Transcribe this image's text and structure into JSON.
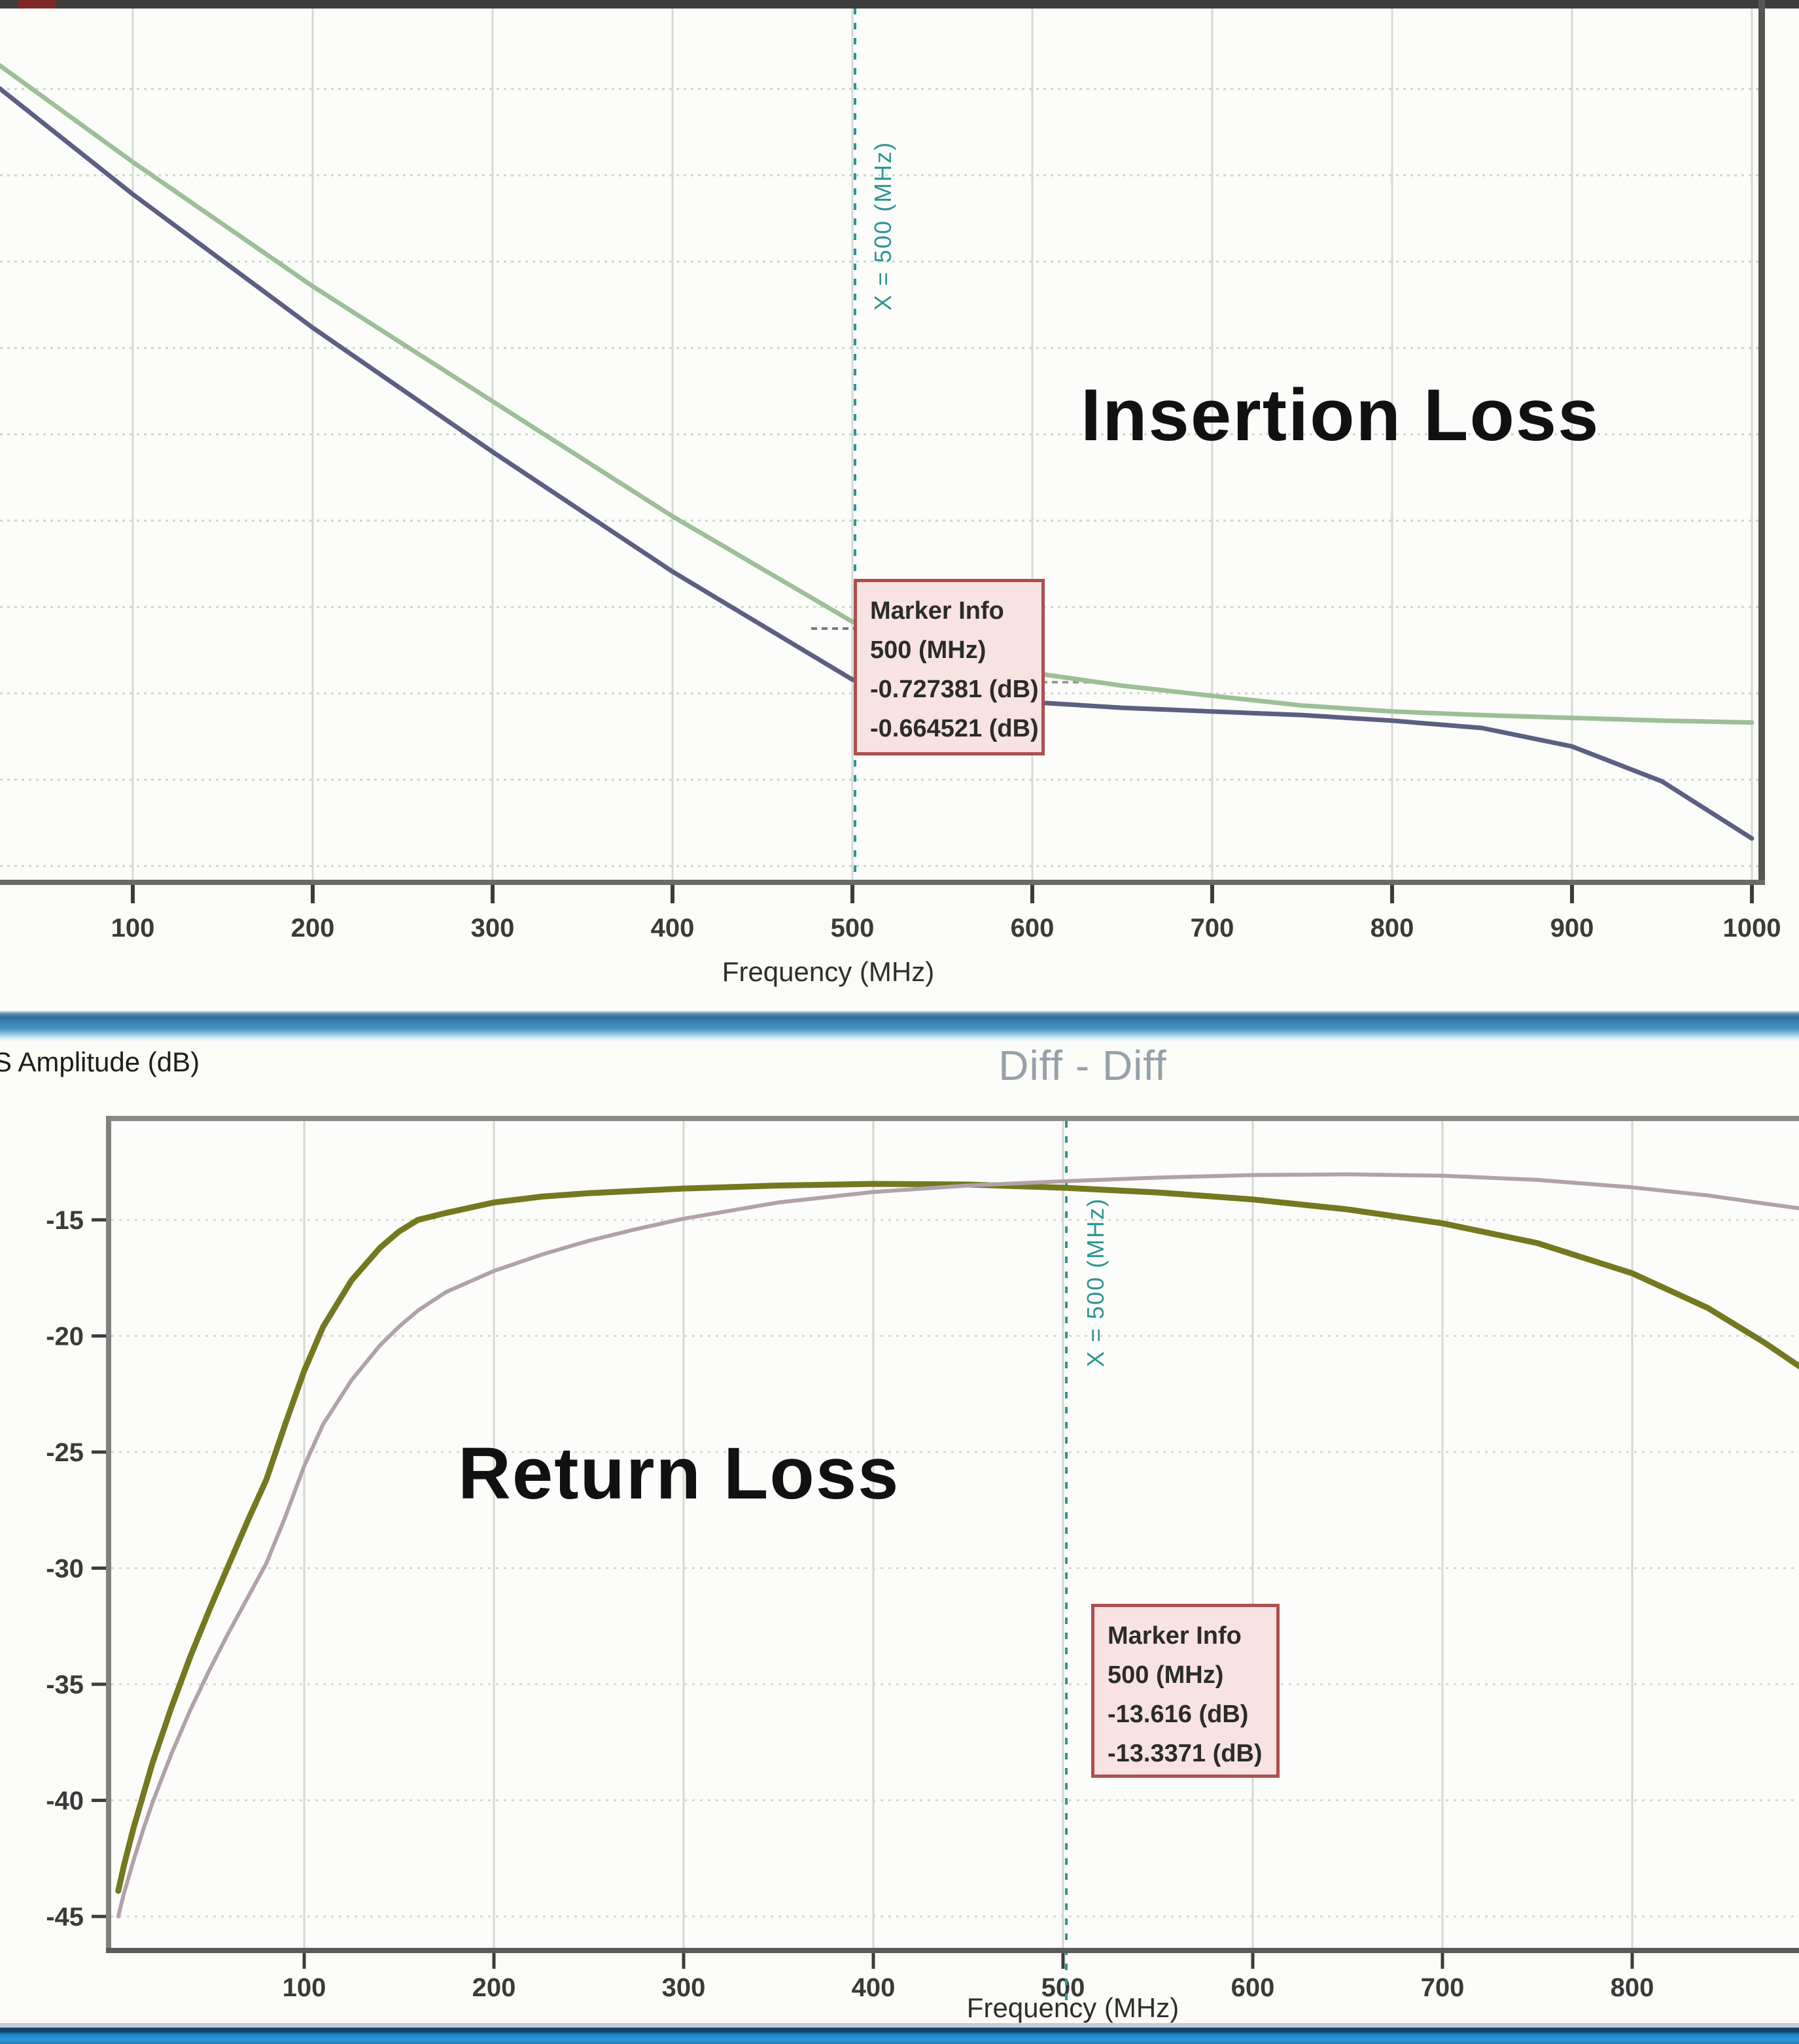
{
  "labels": {
    "s_amplitude": "S Amplitude (dB)",
    "diff_title": "Diff - Diff"
  },
  "colors": {
    "top_trace_blue": "#5c5f82",
    "top_trace_green": "#9dbf98",
    "bottom_trace_olive": "#74781f",
    "bottom_trace_pink": "#b0a2a8",
    "marker_line_teal": "#2f9494",
    "marker_box_bg": "#f8e2e2",
    "marker_box_border": "#ad4f4f",
    "grid_top": "#ccd8cc",
    "grid_bottom": "#d8d8d6",
    "chrome_mid_blue": "#3a86b4",
    "chrome_bottom_blue": "#1d86cc"
  },
  "chart_data": [
    {
      "type": "line",
      "overlay_label": "Insertion Loss",
      "xlabel": "Frequency (MHz)",
      "x_ticks": [
        100,
        200,
        300,
        400,
        500,
        600,
        700,
        800,
        900,
        1000
      ],
      "x_range_mhz": [
        26,
        1003
      ],
      "y_axis_visible": false,
      "y_range_db_est": [
        0,
        -0.95
      ],
      "grid": true,
      "marker": {
        "x_mhz": 500,
        "title": "Marker Info",
        "freq_label": "500 (MHz)",
        "values": [
          "-0.727381 (dB)",
          "-0.664521 (dB)"
        ],
        "x_line_label": "X = 500 (MHz)"
      },
      "series": [
        {
          "name": "green-trace",
          "color": "#9dbf98",
          "width": 7,
          "points": [
            [
              26,
              -0.06
            ],
            [
              100,
              -0.165
            ],
            [
              200,
              -0.3
            ],
            [
              300,
              -0.425
            ],
            [
              400,
              -0.55
            ],
            [
              500,
              -0.6645
            ],
            [
              550,
              -0.695
            ],
            [
              600,
              -0.72
            ],
            [
              650,
              -0.734
            ],
            [
              700,
              -0.745
            ],
            [
              750,
              -0.7555
            ],
            [
              800,
              -0.762
            ],
            [
              850,
              -0.766
            ],
            [
              900,
              -0.769
            ],
            [
              950,
              -0.772
            ],
            [
              1000,
              -0.774
            ]
          ]
        },
        {
          "name": "dark-blue-trace",
          "color": "#5c5f82",
          "width": 7,
          "points": [
            [
              26,
              -0.085
            ],
            [
              100,
              -0.2
            ],
            [
              200,
              -0.345
            ],
            [
              300,
              -0.48
            ],
            [
              400,
              -0.61
            ],
            [
              500,
              -0.7274
            ],
            [
              550,
              -0.742
            ],
            [
              600,
              -0.752
            ],
            [
              650,
              -0.758
            ],
            [
              700,
              -0.762
            ],
            [
              750,
              -0.766
            ],
            [
              800,
              -0.772
            ],
            [
              850,
              -0.78
            ],
            [
              900,
              -0.8
            ],
            [
              950,
              -0.838
            ],
            [
              1000,
              -0.9
            ]
          ]
        }
      ]
    },
    {
      "type": "line",
      "title": "Diff - Diff",
      "ylabel": "S Amplitude (dB)",
      "overlay_label": "Return Loss",
      "xlabel": "Frequency (MHz)",
      "x_ticks": [
        100,
        200,
        300,
        400,
        500,
        600,
        700,
        800
      ],
      "y_ticks": [
        -15,
        -20,
        -25,
        -30,
        -35,
        -40,
        -45
      ],
      "x_range_mhz": [
        0,
        888
      ],
      "ylim": [
        -47.5,
        -10.75
      ],
      "grid": true,
      "marker": {
        "x_mhz": 500,
        "title": "Marker Info",
        "freq_label": "500 (MHz)",
        "values": [
          "-13.616 (dB)",
          "-13.3371 (dB)"
        ],
        "x_line_label": "X = 500 (MHz)"
      },
      "series": [
        {
          "name": "olive-trace",
          "color": "#74781f",
          "width": 9,
          "points": [
            [
              2,
              -43.9
            ],
            [
              5,
              -42.8
            ],
            [
              10,
              -41.2
            ],
            [
              15,
              -39.8
            ],
            [
              20,
              -38.4
            ],
            [
              30,
              -36.0
            ],
            [
              40,
              -33.8
            ],
            [
              50,
              -31.8
            ],
            [
              60,
              -29.9
            ],
            [
              70,
              -28.0
            ],
            [
              80,
              -26.2
            ],
            [
              90,
              -23.8
            ],
            [
              100,
              -21.5
            ],
            [
              110,
              -19.6
            ],
            [
              125,
              -17.6
            ],
            [
              140,
              -16.2
            ],
            [
              150,
              -15.5
            ],
            [
              160,
              -15.0
            ],
            [
              175,
              -14.7
            ],
            [
              200,
              -14.25
            ],
            [
              225,
              -14.0
            ],
            [
              250,
              -13.85
            ],
            [
              300,
              -13.65
            ],
            [
              350,
              -13.52
            ],
            [
              400,
              -13.45
            ],
            [
              450,
              -13.48
            ],
            [
              500,
              -13.616
            ],
            [
              550,
              -13.82
            ],
            [
              600,
              -14.12
            ],
            [
              650,
              -14.55
            ],
            [
              700,
              -15.15
            ],
            [
              750,
              -16.0
            ],
            [
              800,
              -17.3
            ],
            [
              840,
              -18.8
            ],
            [
              870,
              -20.3
            ],
            [
              888,
              -21.3
            ]
          ]
        },
        {
          "name": "pink-trace",
          "color": "#b0a2a8",
          "width": 6,
          "points": [
            [
              2,
              -45.0
            ],
            [
              5,
              -44.0
            ],
            [
              10,
              -42.6
            ],
            [
              15,
              -41.3
            ],
            [
              20,
              -40.1
            ],
            [
              30,
              -38.0
            ],
            [
              40,
              -36.1
            ],
            [
              50,
              -34.4
            ],
            [
              60,
              -32.8
            ],
            [
              70,
              -31.3
            ],
            [
              80,
              -29.8
            ],
            [
              90,
              -27.8
            ],
            [
              100,
              -25.6
            ],
            [
              110,
              -23.8
            ],
            [
              125,
              -21.9
            ],
            [
              140,
              -20.4
            ],
            [
              150,
              -19.6
            ],
            [
              160,
              -18.9
            ],
            [
              175,
              -18.1
            ],
            [
              200,
              -17.2
            ],
            [
              225,
              -16.5
            ],
            [
              250,
              -15.9
            ],
            [
              275,
              -15.4
            ],
            [
              300,
              -14.95
            ],
            [
              350,
              -14.25
            ],
            [
              400,
              -13.8
            ],
            [
              450,
              -13.52
            ],
            [
              500,
              -13.3371
            ],
            [
              550,
              -13.18
            ],
            [
              600,
              -13.07
            ],
            [
              650,
              -13.04
            ],
            [
              700,
              -13.1
            ],
            [
              750,
              -13.28
            ],
            [
              800,
              -13.6
            ],
            [
              840,
              -13.95
            ],
            [
              870,
              -14.3
            ],
            [
              888,
              -14.5
            ]
          ]
        }
      ]
    }
  ]
}
